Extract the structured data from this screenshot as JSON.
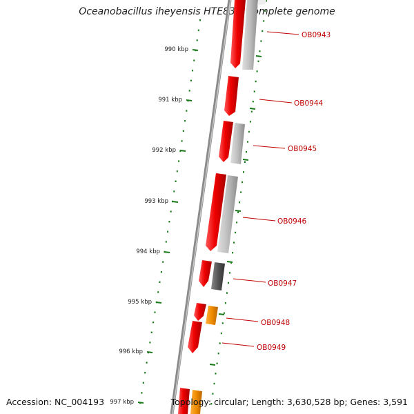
{
  "title": "Oceanobacillus iheyensis HTE831, complete genome",
  "footer": {
    "accession": "Accession: NC_004193",
    "summary": "Topology: circular; Length: 3,630,528 bp; Genes: 3,591"
  },
  "ticks": [
    {
      "label": "990 kbp",
      "kbp": 990
    },
    {
      "label": "991 kbp",
      "kbp": 991
    },
    {
      "label": "992 kbp",
      "kbp": 992
    },
    {
      "label": "993 kbp",
      "kbp": 993
    },
    {
      "label": "994 kbp",
      "kbp": 994
    },
    {
      "label": "995 kbp",
      "kbp": 995
    },
    {
      "label": "996 kbp",
      "kbp": 996
    },
    {
      "label": "997 kbp",
      "kbp": 997
    }
  ],
  "genes": [
    {
      "label": "OB0943",
      "color": "#ee0000"
    },
    {
      "label": "OB0944",
      "color": "#ee0000"
    },
    {
      "label": "OB0945",
      "color": "#ee0000"
    },
    {
      "label": "OB0946",
      "color": "#ee0000"
    },
    {
      "label": "OB0947",
      "color": "#ee0000"
    },
    {
      "label": "OB0948",
      "color": "#ee0000"
    },
    {
      "label": "OB0949",
      "color": "#ee0000"
    }
  ],
  "colors": {
    "cds": "#ee0000",
    "tick": "#1a7a1a",
    "backbone": "#8a8a8a",
    "cog_light": "#bdbdbd",
    "cog_dark": "#555555",
    "cog_orange": "#f08c00",
    "label": "#c00000"
  }
}
